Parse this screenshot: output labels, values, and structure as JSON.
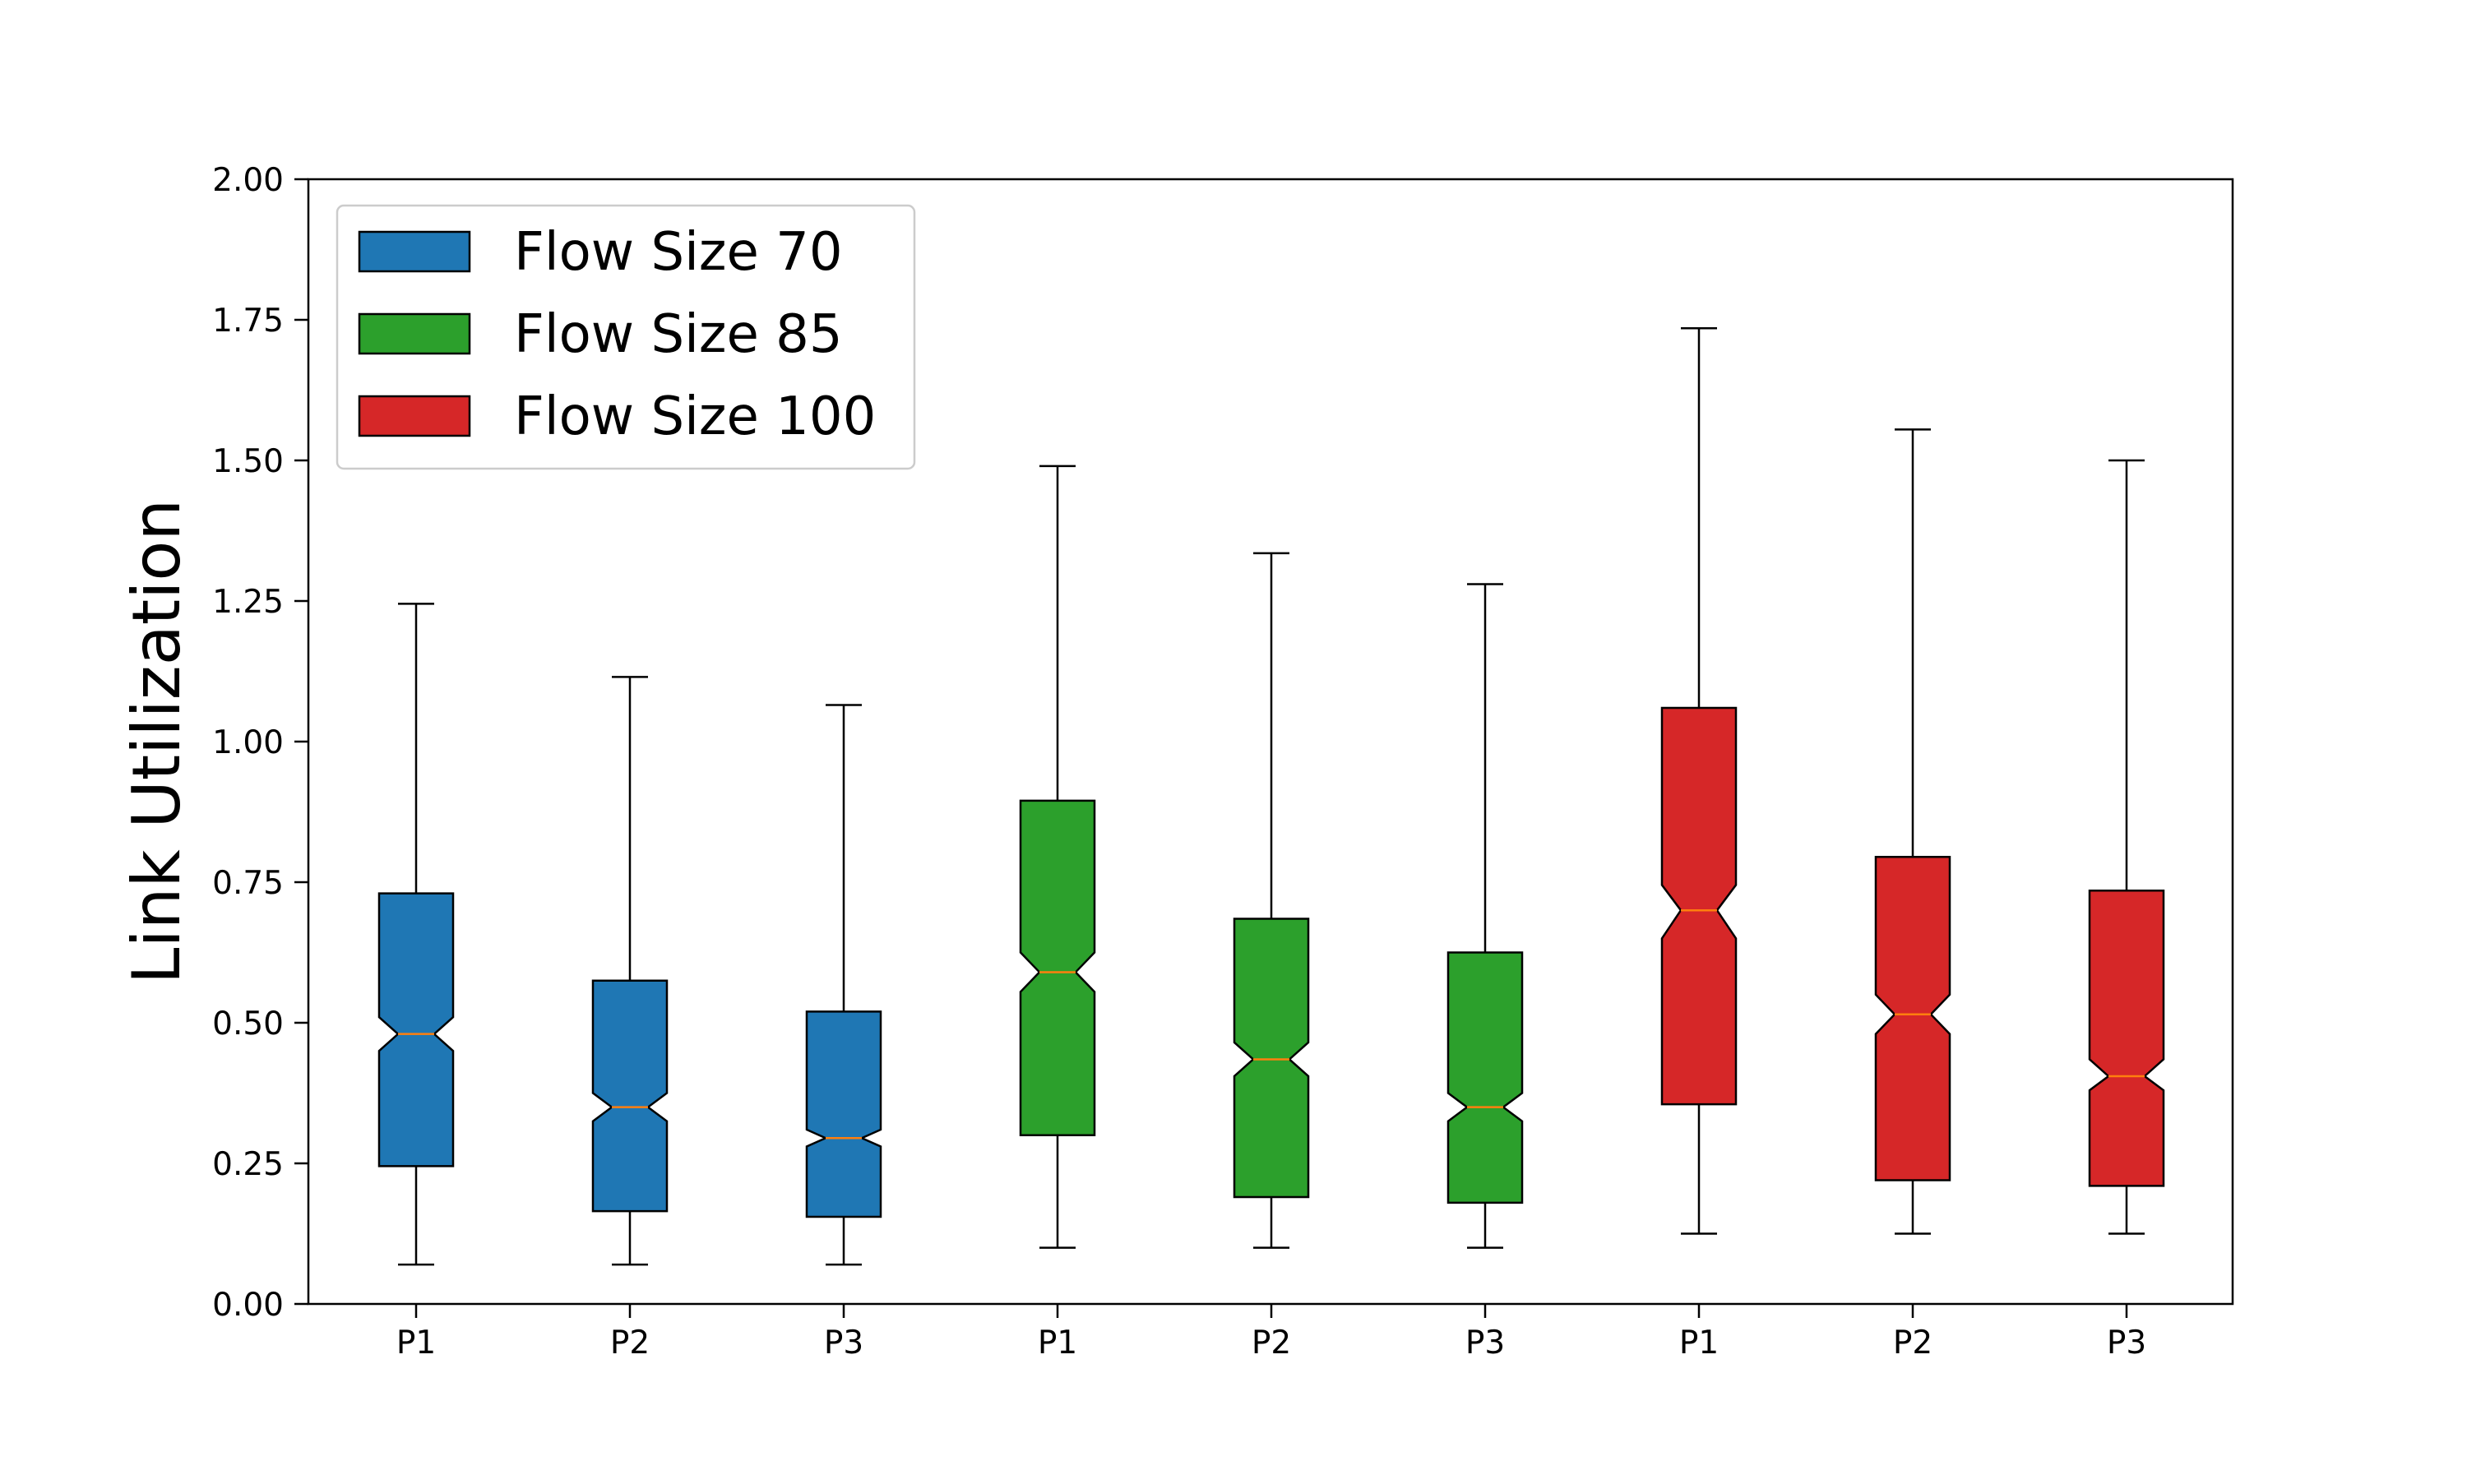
{
  "chart_data": {
    "type": "boxplot",
    "notched": true,
    "ylabel": "Link Utilization",
    "xlabel": "",
    "title": "",
    "ylim": [
      0,
      2.0
    ],
    "yticks": [
      "0.00",
      "0.25",
      "0.50",
      "0.75",
      "1.00",
      "1.25",
      "1.50",
      "1.75",
      "2.00"
    ],
    "legend_position": "top-left",
    "median_color": "#ff7f0e",
    "series": [
      {
        "name": "Flow Size 70",
        "color": "#1f77b4",
        "boxes": [
          {
            "label": "P1",
            "whislo": 0.07,
            "q1": 0.245,
            "med": 0.48,
            "q3": 0.73,
            "whishi": 1.245,
            "notch_lo": 0.45,
            "notch_hi": 0.51
          },
          {
            "label": "P2",
            "whislo": 0.07,
            "q1": 0.165,
            "med": 0.35,
            "q3": 0.575,
            "whishi": 1.115,
            "notch_lo": 0.325,
            "notch_hi": 0.375
          },
          {
            "label": "P3",
            "whislo": 0.07,
            "q1": 0.155,
            "med": 0.295,
            "q3": 0.52,
            "whishi": 1.065,
            "notch_lo": 0.28,
            "notch_hi": 0.31
          }
        ]
      },
      {
        "name": "Flow Size 85",
        "color": "#2ca02c",
        "boxes": [
          {
            "label": "P1",
            "whislo": 0.1,
            "q1": 0.3,
            "med": 0.59,
            "q3": 0.895,
            "whishi": 1.49,
            "notch_lo": 0.555,
            "notch_hi": 0.625
          },
          {
            "label": "P2",
            "whislo": 0.1,
            "q1": 0.19,
            "med": 0.435,
            "q3": 0.685,
            "whishi": 1.335,
            "notch_lo": 0.405,
            "notch_hi": 0.465
          },
          {
            "label": "P3",
            "whislo": 0.1,
            "q1": 0.18,
            "med": 0.35,
            "q3": 0.625,
            "whishi": 1.28,
            "notch_lo": 0.325,
            "notch_hi": 0.375
          }
        ]
      },
      {
        "name": "Flow Size 100",
        "color": "#d62728",
        "boxes": [
          {
            "label": "P1",
            "whislo": 0.125,
            "q1": 0.355,
            "med": 0.7,
            "q3": 1.06,
            "whishi": 1.735,
            "notch_lo": 0.65,
            "notch_hi": 0.745
          },
          {
            "label": "P2",
            "whislo": 0.125,
            "q1": 0.22,
            "med": 0.515,
            "q3": 0.795,
            "whishi": 1.555,
            "notch_lo": 0.48,
            "notch_hi": 0.55
          },
          {
            "label": "P3",
            "whislo": 0.125,
            "q1": 0.21,
            "med": 0.405,
            "q3": 0.735,
            "whishi": 1.5,
            "notch_lo": 0.38,
            "notch_hi": 0.435
          }
        ]
      }
    ]
  }
}
